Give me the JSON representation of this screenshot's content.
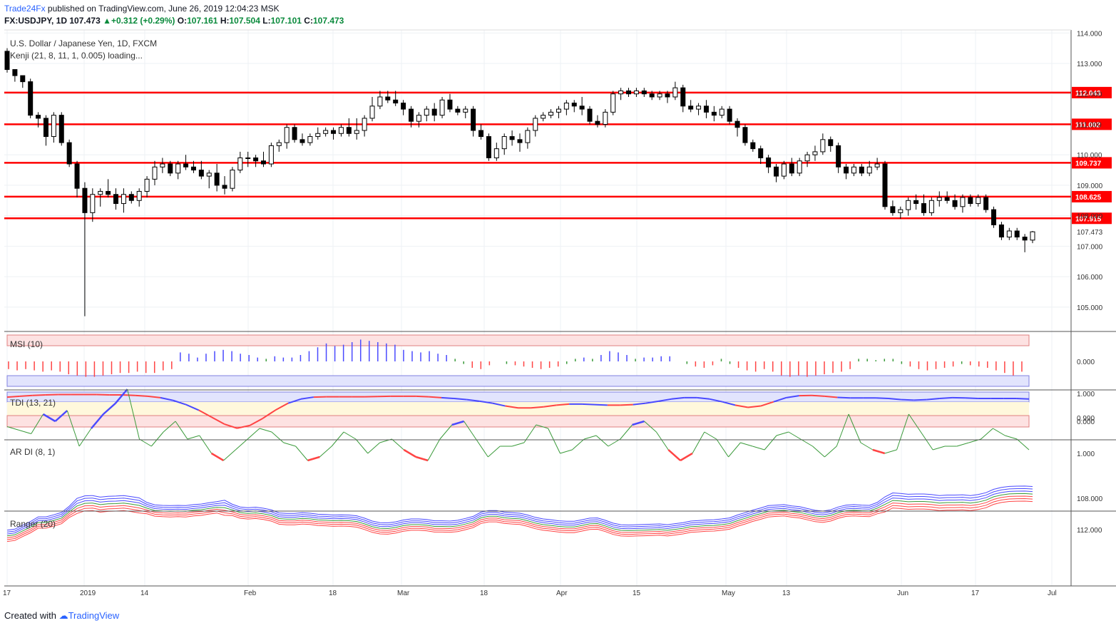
{
  "header": {
    "brand": "Trade24Fx",
    "published": " published on TradingView.com, June 26, 2019 12:04:23 MSK",
    "symbol": "FX:USDJPY, 1D",
    "last": "107.473",
    "change": "+0.312 (+0.29%)",
    "o_label": "O:",
    "o": "107.161",
    "h_label": "H:",
    "h": "107.504",
    "l_label": "L:",
    "l": "107.101",
    "c_label": "C:",
    "c": "107.473"
  },
  "main": {
    "title": "U.S. Dollar / Japanese Yen, 1D, FXCM",
    "indicator": "Kenji (21, 8, 11, 1, 0.005) loading..."
  },
  "panels": {
    "msi": "MSI (10)",
    "tdi": "TDI (13, 21)",
    "ardi": "AR DI (8, 1)",
    "ranger": "Ranger (20)"
  },
  "footer": {
    "created_with": "Created with ",
    "brand": "TradingView"
  },
  "colors": {
    "bull": "#ffffff",
    "bear": "#000000",
    "level": "#ff0000",
    "blue": "#4a4aff",
    "red": "#ff4444",
    "green": "#3a9a3a"
  },
  "chart_data": {
    "type": "candlestick",
    "symbol": "USDJPY",
    "y_axis": [
      "114.000",
      "113.000",
      "112.000",
      "111.000",
      "110.000",
      "109.000",
      "108.000",
      "107.000",
      "106.000",
      "105.000"
    ],
    "ylim": [
      104.2,
      114.1
    ],
    "x_axis_labels": [
      "17",
      "2019",
      "14",
      "Feb",
      "18",
      "Mar",
      "18",
      "Apr",
      "15",
      "May",
      "13",
      "Jun",
      "17",
      "Jul"
    ],
    "levels": [
      "112.043",
      "111.002",
      "109.737",
      "108.625",
      "107.915"
    ],
    "last_price_label": "107.473",
    "candles": [
      [
        113.4,
        113.5,
        112.7,
        112.8
      ],
      [
        112.8,
        112.8,
        112.4,
        112.6
      ],
      [
        112.6,
        112.6,
        112.2,
        112.4
      ],
      [
        112.4,
        112.5,
        111.2,
        111.3
      ],
      [
        111.3,
        111.4,
        110.9,
        111.2
      ],
      [
        111.2,
        111.3,
        110.3,
        110.6
      ],
      [
        110.6,
        111.4,
        110.4,
        111.3
      ],
      [
        111.3,
        111.4,
        110.3,
        110.4
      ],
      [
        110.4,
        110.5,
        109.6,
        109.7
      ],
      [
        109.7,
        109.8,
        108.6,
        108.9
      ],
      [
        108.9,
        109.1,
        104.7,
        108.1
      ],
      [
        108.1,
        108.9,
        107.8,
        108.7
      ],
      [
        108.7,
        108.9,
        108.3,
        108.8
      ],
      [
        108.8,
        109.2,
        108.6,
        108.7
      ],
      [
        108.7,
        108.9,
        108.2,
        108.4
      ],
      [
        108.4,
        108.9,
        108.1,
        108.7
      ],
      [
        108.7,
        108.8,
        108.4,
        108.5
      ],
      [
        108.5,
        108.9,
        108.3,
        108.8
      ],
      [
        108.8,
        109.3,
        108.6,
        109.2
      ],
      [
        109.2,
        109.8,
        109.0,
        109.6
      ],
      [
        109.6,
        109.9,
        109.4,
        109.7
      ],
      [
        109.7,
        109.8,
        109.3,
        109.4
      ],
      [
        109.4,
        109.8,
        109.2,
        109.7
      ],
      [
        109.7,
        110.0,
        109.5,
        109.6
      ],
      [
        109.6,
        109.8,
        109.4,
        109.5
      ],
      [
        109.5,
        109.8,
        109.2,
        109.3
      ],
      [
        109.3,
        109.5,
        108.9,
        109.4
      ],
      [
        109.4,
        109.7,
        108.8,
        109.0
      ],
      [
        109.0,
        109.3,
        108.7,
        108.9
      ],
      [
        108.9,
        109.6,
        108.8,
        109.5
      ],
      [
        109.5,
        110.1,
        109.4,
        109.9
      ],
      [
        109.9,
        110.1,
        109.6,
        109.9
      ],
      [
        109.9,
        110.0,
        109.6,
        109.8
      ],
      [
        109.8,
        110.1,
        109.6,
        109.7
      ],
      [
        109.7,
        110.4,
        109.6,
        110.3
      ],
      [
        110.3,
        110.5,
        110.1,
        110.4
      ],
      [
        110.4,
        111.0,
        110.2,
        110.9
      ],
      [
        110.9,
        111.0,
        110.4,
        110.5
      ],
      [
        110.5,
        110.7,
        110.3,
        110.4
      ],
      [
        110.4,
        110.7,
        110.3,
        110.6
      ],
      [
        110.6,
        110.9,
        110.5,
        110.7
      ],
      [
        110.7,
        110.9,
        110.6,
        110.8
      ],
      [
        110.8,
        110.9,
        110.5,
        110.7
      ],
      [
        110.7,
        111.0,
        110.6,
        110.9
      ],
      [
        110.9,
        111.2,
        110.6,
        110.7
      ],
      [
        110.7,
        111.2,
        110.5,
        110.8
      ],
      [
        110.8,
        111.3,
        110.6,
        111.2
      ],
      [
        111.2,
        111.9,
        111.1,
        111.6
      ],
      [
        111.6,
        112.1,
        111.5,
        111.9
      ],
      [
        111.9,
        112.1,
        111.7,
        111.8
      ],
      [
        111.8,
        112.1,
        111.6,
        111.7
      ],
      [
        111.7,
        111.8,
        111.3,
        111.5
      ],
      [
        111.5,
        111.6,
        110.9,
        111.1
      ],
      [
        111.1,
        111.4,
        110.9,
        111.3
      ],
      [
        111.3,
        111.6,
        111.1,
        111.5
      ],
      [
        111.5,
        111.7,
        111.1,
        111.3
      ],
      [
        111.3,
        111.9,
        111.2,
        111.8
      ],
      [
        111.8,
        112.0,
        111.4,
        111.5
      ],
      [
        111.5,
        111.6,
        111.3,
        111.4
      ],
      [
        111.4,
        111.6,
        111.2,
        111.5
      ],
      [
        111.5,
        111.6,
        110.6,
        110.8
      ],
      [
        110.8,
        111.0,
        110.5,
        110.6
      ],
      [
        110.6,
        110.7,
        109.8,
        109.9
      ],
      [
        109.9,
        110.4,
        109.8,
        110.2
      ],
      [
        110.2,
        110.7,
        110.0,
        110.6
      ],
      [
        110.6,
        110.8,
        110.3,
        110.5
      ],
      [
        110.5,
        110.7,
        110.1,
        110.4
      ],
      [
        110.4,
        110.9,
        110.2,
        110.8
      ],
      [
        110.8,
        111.3,
        110.6,
        111.2
      ],
      [
        111.2,
        111.4,
        111.1,
        111.3
      ],
      [
        111.3,
        111.5,
        111.2,
        111.4
      ],
      [
        111.4,
        111.6,
        111.2,
        111.5
      ],
      [
        111.5,
        111.8,
        111.3,
        111.7
      ],
      [
        111.7,
        111.8,
        111.4,
        111.6
      ],
      [
        111.6,
        111.9,
        111.3,
        111.5
      ],
      [
        111.5,
        111.6,
        111.0,
        111.1
      ],
      [
        111.1,
        111.3,
        110.9,
        111.0
      ],
      [
        111.0,
        111.5,
        110.9,
        111.4
      ],
      [
        111.4,
        112.1,
        111.3,
        112.0
      ],
      [
        112.0,
        112.2,
        111.8,
        112.1
      ],
      [
        112.1,
        112.2,
        111.9,
        112.0
      ],
      [
        112.0,
        112.2,
        111.9,
        112.1
      ],
      [
        112.1,
        112.2,
        111.9,
        112.0
      ],
      [
        112.0,
        112.1,
        111.8,
        111.9
      ],
      [
        111.9,
        112.1,
        111.8,
        112.0
      ],
      [
        112.0,
        112.1,
        111.7,
        111.9
      ],
      [
        111.9,
        112.4,
        111.8,
        112.2
      ],
      [
        112.2,
        112.3,
        111.4,
        111.6
      ],
      [
        111.6,
        111.8,
        111.4,
        111.5
      ],
      [
        111.5,
        111.7,
        111.3,
        111.6
      ],
      [
        111.6,
        111.8,
        111.2,
        111.4
      ],
      [
        111.4,
        111.6,
        111.1,
        111.3
      ],
      [
        111.3,
        111.6,
        111.2,
        111.5
      ],
      [
        111.5,
        111.6,
        111.0,
        111.1
      ],
      [
        111.1,
        111.2,
        110.6,
        110.9
      ],
      [
        110.9,
        111.0,
        110.3,
        110.4
      ],
      [
        110.4,
        110.5,
        110.1,
        110.2
      ],
      [
        110.2,
        110.3,
        109.7,
        109.9
      ],
      [
        109.9,
        110.0,
        109.4,
        109.6
      ],
      [
        109.6,
        109.7,
        109.1,
        109.3
      ],
      [
        109.3,
        109.8,
        109.2,
        109.7
      ],
      [
        109.7,
        109.9,
        109.3,
        109.4
      ],
      [
        109.4,
        109.9,
        109.3,
        109.8
      ],
      [
        109.8,
        110.1,
        109.6,
        110.0
      ],
      [
        110.0,
        110.3,
        109.8,
        110.1
      ],
      [
        110.1,
        110.7,
        110.0,
        110.5
      ],
      [
        110.5,
        110.6,
        110.1,
        110.3
      ],
      [
        110.3,
        110.4,
        109.4,
        109.6
      ],
      [
        109.6,
        109.7,
        109.2,
        109.4
      ],
      [
        109.4,
        109.7,
        109.3,
        109.6
      ],
      [
        109.6,
        109.7,
        109.3,
        109.4
      ],
      [
        109.4,
        109.8,
        109.3,
        109.6
      ],
      [
        109.6,
        109.9,
        109.5,
        109.7
      ],
      [
        109.7,
        109.8,
        108.2,
        108.3
      ],
      [
        108.3,
        108.5,
        108.0,
        108.1
      ],
      [
        108.1,
        108.3,
        107.9,
        108.2
      ],
      [
        108.2,
        108.6,
        108.0,
        108.5
      ],
      [
        108.5,
        108.7,
        108.2,
        108.4
      ],
      [
        108.4,
        108.7,
        108.0,
        108.1
      ],
      [
        108.1,
        108.6,
        108.0,
        108.5
      ],
      [
        108.5,
        108.8,
        108.3,
        108.6
      ],
      [
        108.6,
        108.8,
        108.4,
        108.5
      ],
      [
        108.5,
        108.7,
        108.2,
        108.3
      ],
      [
        108.3,
        108.7,
        108.1,
        108.6
      ],
      [
        108.6,
        108.7,
        108.3,
        108.4
      ],
      [
        108.4,
        108.7,
        108.3,
        108.6
      ],
      [
        108.6,
        108.7,
        108.1,
        108.2
      ],
      [
        108.2,
        108.3,
        107.6,
        107.7
      ],
      [
        107.7,
        107.8,
        107.2,
        107.3
      ],
      [
        107.3,
        107.6,
        107.2,
        107.5
      ],
      [
        107.5,
        107.6,
        107.2,
        107.3
      ],
      [
        107.3,
        107.4,
        106.8,
        107.2
      ],
      [
        107.2,
        107.5,
        107.1,
        107.473
      ]
    ],
    "msi": {
      "type": "histogram",
      "y_axis": [
        "0.000"
      ],
      "values": [
        -0.3,
        -0.35,
        -0.3,
        -0.35,
        -0.4,
        -0.35,
        -0.4,
        -0.5,
        -0.55,
        -0.6,
        -0.6,
        -0.55,
        -0.5,
        -0.45,
        -0.45,
        -0.4,
        -0.45,
        -0.45,
        -0.35,
        -0.3,
        0.35,
        0.3,
        0.15,
        0.3,
        0.4,
        0.45,
        0.4,
        0.3,
        0.25,
        0.15,
        0.1,
        0.2,
        0.15,
        0.15,
        0.25,
        0.4,
        0.55,
        0.7,
        0.6,
        0.65,
        0.75,
        0.85,
        0.8,
        0.75,
        0.7,
        0.65,
        0.45,
        0.4,
        0.35,
        0.4,
        0.3,
        0.25,
        0.1,
        -0.1,
        -0.25,
        -0.3,
        -0.15,
        0.0,
        -0.1,
        -0.15,
        -0.2,
        -0.25,
        -0.3,
        -0.25,
        -0.2,
        -0.1,
        0.1,
        0.15,
        0.1,
        0.25,
        0.4,
        0.35,
        0.25,
        0.1,
        0.15,
        0.15,
        0.2,
        0.2,
        0.0,
        -0.1,
        -0.2,
        -0.25,
        -0.15,
        0.1,
        -0.1,
        -0.25,
        -0.35,
        -0.4,
        -0.3,
        -0.4,
        -0.55,
        -0.6,
        -0.55,
        -0.6,
        -0.55,
        -0.5,
        -0.45,
        -0.4,
        -0.3,
        0.1,
        0.1,
        0.05,
        0.1,
        0.1,
        -0.1,
        -0.2,
        -0.3,
        -0.35,
        -0.3,
        -0.25,
        -0.2,
        -0.1,
        -0.15,
        -0.2,
        -0.25,
        -0.35,
        -0.45,
        -0.55,
        -0.4
      ],
      "colors_note": "red negative, blue positive, green small"
    },
    "tdi": {
      "type": "line",
      "y_axis": [
        "1.000",
        "0.000"
      ],
      "values": [
        0.87,
        0.9,
        0.93,
        0.95,
        0.96,
        0.96,
        0.96,
        0.96,
        0.95,
        0.95,
        0.93,
        0.9,
        0.85,
        0.75,
        0.6,
        0.4,
        0.15,
        -0.1,
        -0.25,
        -0.15,
        0.1,
        0.4,
        0.65,
        0.8,
        0.87,
        0.88,
        0.88,
        0.88,
        0.88,
        0.89,
        0.9,
        0.9,
        0.9,
        0.88,
        0.85,
        0.82,
        0.78,
        0.72,
        0.65,
        0.55,
        0.48,
        0.48,
        0.52,
        0.58,
        0.62,
        0.62,
        0.6,
        0.58,
        0.58,
        0.6,
        0.65,
        0.72,
        0.8,
        0.85,
        0.85,
        0.8,
        0.7,
        0.58,
        0.5,
        0.55,
        0.7,
        0.85,
        0.92,
        0.93,
        0.9,
        0.86,
        0.84,
        0.84,
        0.84,
        0.82,
        0.78,
        0.76,
        0.78,
        0.82,
        0.85,
        0.84,
        0.82,
        0.82,
        0.82,
        0.82,
        0.8
      ]
    },
    "ardi": {
      "type": "line",
      "y_axis": [
        "1.000",
        "0.990"
      ],
      "values": [
        0.9925,
        0.9935,
        0.9945,
        0.989,
        0.991,
        0.988,
        0.998,
        0.993,
        0.989,
        0.986,
        0.982,
        0.996,
        0.998,
        0.994,
        0.991,
        0.996,
        0.995,
        1.0,
        1.002,
        0.999,
        0.996,
        0.993,
        0.994,
        0.997,
        0.998,
        1.002,
        1.001,
        0.998,
        0.994,
        0.996,
        1.0,
        0.997,
        0.996,
        0.999,
        1.001,
        1.002,
        0.996,
        0.992,
        0.991,
        0.996,
        1.001,
        0.998,
        0.998,
        0.997,
        0.992,
        0.993,
        1.0,
        0.999,
        0.996,
        0.995,
        0.998,
        0.996,
        0.992,
        0.991,
        0.994,
        0.999,
        1.002,
        1.0,
        0.994,
        0.996,
        1.001,
        0.997,
        0.998,
        0.999,
        0.995,
        0.994,
        0.996,
        0.998,
        1.001,
        0.998,
        0.989,
        0.997,
        0.999,
        1.0,
        0.999,
        0.989,
        0.994,
        0.999,
        0.998,
        0.998,
        0.997,
        0.996,
        0.993,
        0.995,
        0.996,
        0.999
      ]
    },
    "ranger": {
      "type": "line",
      "y_axis": [
        "112.000",
        "108.000"
      ],
      "note": "band of red/green/blue envelope lines around price"
    }
  }
}
